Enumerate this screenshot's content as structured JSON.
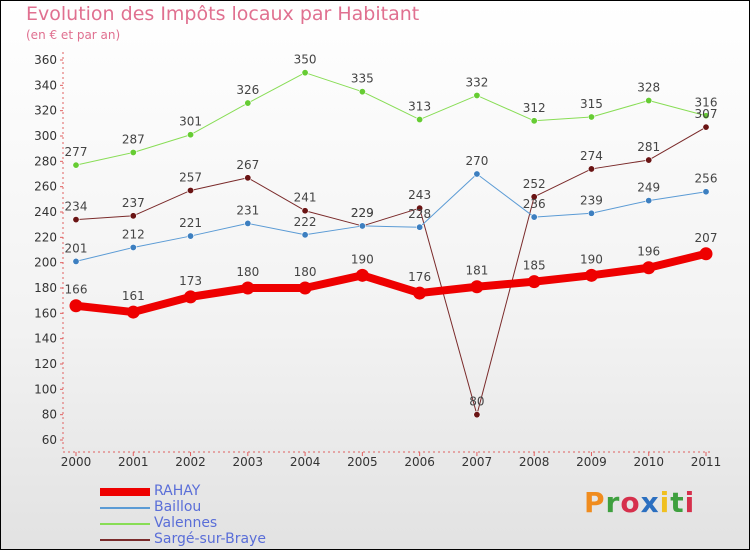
{
  "title": "Evolution des Impôts locaux par Habitant",
  "subtitle": "(en € et par an)",
  "logo": {
    "text": "Proxiti",
    "colors": [
      "#f08c1e",
      "#3fa03f",
      "#d6304c",
      "#2b6fc0",
      "#f0c020",
      "#3fa03f",
      "#d6304c"
    ]
  },
  "chart_data": {
    "type": "line",
    "title": "Evolution des Impôts locaux par Habitant",
    "subtitle": "(en € et par an)",
    "xlabel": "",
    "ylabel": "",
    "ylim": [
      60,
      360
    ],
    "ytick_step": 20,
    "grid": false,
    "legend_position": "bottom-left",
    "categories": [
      "2000",
      "2001",
      "2002",
      "2003",
      "2004",
      "2005",
      "2006",
      "2007",
      "2008",
      "2009",
      "2010",
      "2011"
    ],
    "series": [
      {
        "name": "Valennes",
        "color": "#88dd55",
        "marker": "#66cc33",
        "width": 1,
        "values": [
          277,
          287,
          301,
          326,
          350,
          335,
          313,
          332,
          312,
          315,
          328,
          316
        ]
      },
      {
        "name": "Sargé-sur-Braye",
        "color": "#7a2a2a",
        "marker": "#6a1414",
        "width": 1,
        "values": [
          234,
          237,
          257,
          267,
          241,
          229,
          243,
          80,
          252,
          274,
          281,
          307
        ]
      },
      {
        "name": "Baillou",
        "color": "#5b9bd5",
        "marker": "#3d7fc0",
        "width": 1,
        "values": [
          201,
          212,
          221,
          231,
          222,
          229,
          228,
          270,
          236,
          239,
          249,
          256
        ]
      },
      {
        "name": "RAHAY",
        "color": "#ee0000",
        "marker": "#ee0000",
        "width": 8,
        "values": [
          166,
          161,
          173,
          180,
          180,
          190,
          176,
          181,
          185,
          190,
          196,
          207
        ]
      }
    ],
    "legend": [
      "RAHAY",
      "Baillou",
      "Valennes",
      "Sargé-sur-Braye"
    ]
  }
}
